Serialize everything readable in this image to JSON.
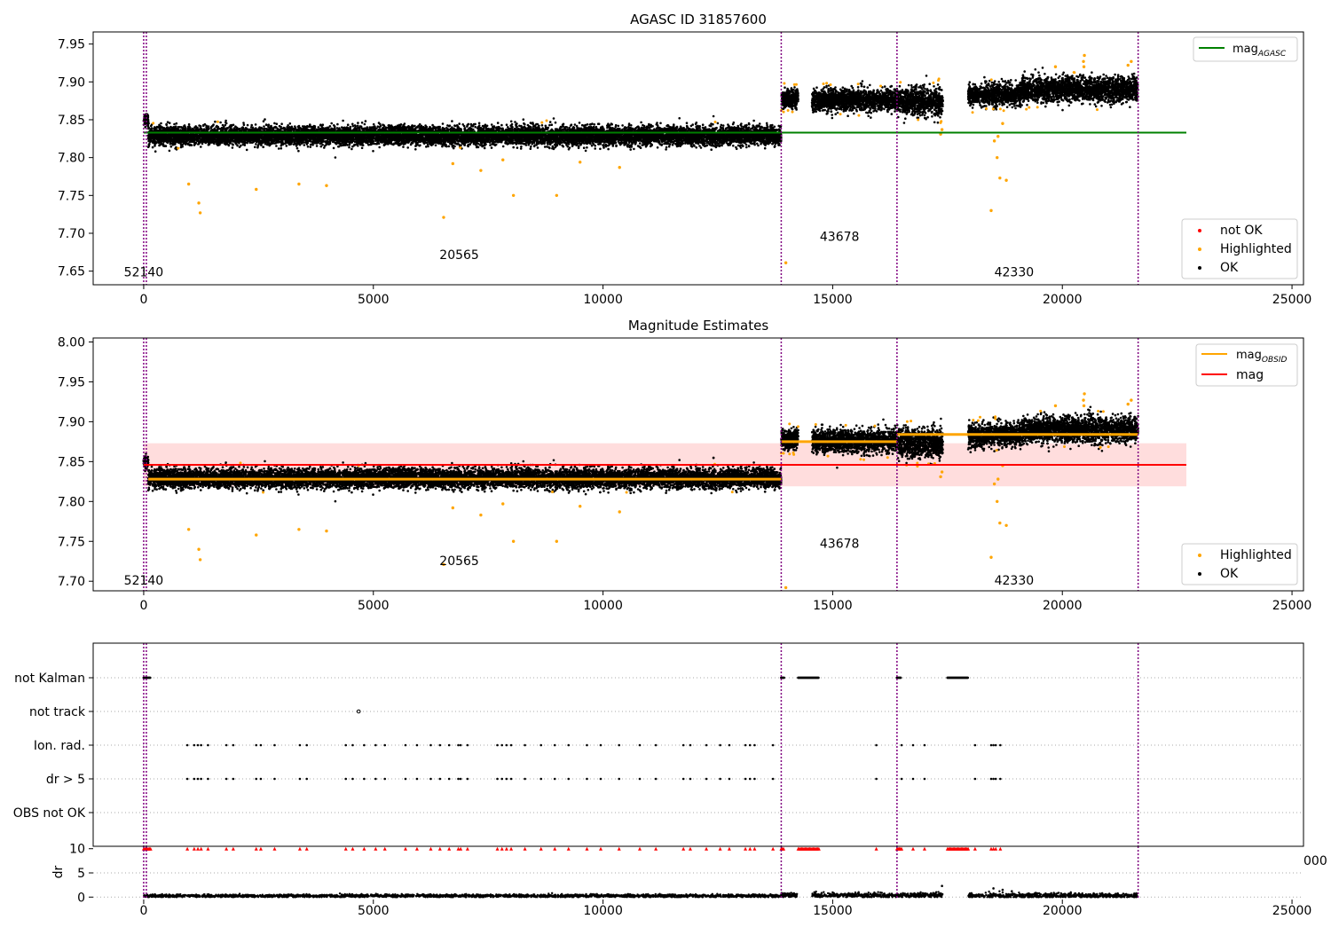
{
  "chart_data": [
    {
      "type": "scatter",
      "title": "AGASC ID 31857600",
      "xlim": [
        -1100,
        25250
      ],
      "ylim": [
        7.632,
        7.966
      ],
      "x_ticks": [
        0,
        5000,
        10000,
        15000,
        20000,
        25000
      ],
      "y_ticks": [
        7.65,
        7.7,
        7.75,
        7.8,
        7.85,
        7.9,
        7.95
      ],
      "observation_boundaries": [
        0,
        13880,
        16400,
        21650
      ],
      "obsid_labels": [
        {
          "text": "52140",
          "x": 0,
          "y": 7.643
        },
        {
          "text": "20565",
          "x": 6870,
          "y": 7.666
        },
        {
          "text": "43678",
          "x": 15150,
          "y": 7.69
        },
        {
          "text": "42330",
          "x": 18950,
          "y": 7.643
        }
      ],
      "reference_lines": [
        {
          "name": "mag_AGASC",
          "y": 7.833,
          "x_range": [
            0,
            22700
          ],
          "color": "#008000"
        }
      ],
      "segments": [
        {
          "x_range": [
            0,
            100
          ],
          "center": 7.85,
          "spread": 0.004
        },
        {
          "x_range": [
            100,
            13880
          ],
          "center": 7.829,
          "spread": 0.006
        },
        {
          "x_range": [
            13880,
            14250
          ],
          "center": 7.878,
          "spread": 0.006
        },
        {
          "x_range": [
            14550,
            16400
          ],
          "center": 7.876,
          "spread": 0.007
        },
        {
          "x_range": [
            16400,
            17400
          ],
          "center": 7.874,
          "spread": 0.009
        },
        {
          "x_range": [
            17950,
            19100
          ],
          "center": 7.883,
          "spread": 0.007
        },
        {
          "x_range": [
            19100,
            21650
          ],
          "center": 7.89,
          "spread": 0.008
        }
      ],
      "highlighted_points": [
        [
          980,
          7.765
        ],
        [
          1200,
          7.74
        ],
        [
          1230,
          7.727
        ],
        [
          2450,
          7.758
        ],
        [
          3380,
          7.765
        ],
        [
          3980,
          7.763
        ],
        [
          6530,
          7.721
        ],
        [
          6730,
          7.792
        ],
        [
          7340,
          7.783
        ],
        [
          7820,
          7.797
        ],
        [
          8050,
          7.75
        ],
        [
          8990,
          7.75
        ],
        [
          9500,
          7.794
        ],
        [
          10360,
          7.787
        ],
        [
          13980,
          7.661
        ],
        [
          17350,
          7.831
        ],
        [
          17380,
          7.837
        ],
        [
          18450,
          7.73
        ],
        [
          18520,
          7.822
        ],
        [
          18580,
          7.8
        ],
        [
          18600,
          7.828
        ],
        [
          18640,
          7.773
        ],
        [
          18780,
          7.77
        ],
        [
          18700,
          7.845
        ],
        [
          20480,
          7.935
        ],
        [
          20460,
          7.927
        ],
        [
          20470,
          7.92
        ],
        [
          21500,
          7.927
        ],
        [
          21430,
          7.922
        ],
        [
          19850,
          7.92
        ]
      ],
      "legend": {
        "position": "top-right",
        "items": [
          {
            "label": "mag",
            "subscript": "AGASC",
            "color": "#008000"
          }
        ]
      },
      "legend2": {
        "position": "lower-right",
        "items": [
          {
            "label": "not OK",
            "color": "#ff0000"
          },
          {
            "label": "Highlighted",
            "color": "#ffa500"
          },
          {
            "label": "OK",
            "color": "#000000"
          }
        ]
      }
    },
    {
      "type": "scatter",
      "title": "Magnitude Estimates",
      "xlim": [
        -1100,
        25250
      ],
      "ylim": [
        7.688,
        8.005
      ],
      "x_ticks": [
        0,
        5000,
        10000,
        15000,
        20000,
        25000
      ],
      "y_ticks": [
        7.7,
        7.75,
        7.8,
        7.85,
        7.9,
        7.95,
        8.0
      ],
      "observation_boundaries": [
        0,
        13880,
        16400,
        21650
      ],
      "obsid_labels": [
        {
          "text": "52140",
          "x": 0,
          "y": 7.696
        },
        {
          "text": "20565",
          "x": 6870,
          "y": 7.72
        },
        {
          "text": "43678",
          "x": 15150,
          "y": 7.742
        },
        {
          "text": "42330",
          "x": 18950,
          "y": 7.696
        }
      ],
      "band": {
        "y_range": [
          7.819,
          7.873
        ],
        "x_range": [
          0,
          22700
        ],
        "color": "#ffdddd"
      },
      "reference_lines": [
        {
          "name": "mag",
          "y": 7.846,
          "x_range": [
            0,
            22700
          ],
          "color": "#ff0000"
        }
      ],
      "obsid_lines": [
        {
          "x_range": [
            100,
            13880
          ],
          "y": 7.828
        },
        {
          "x_range": [
            13880,
            16400
          ],
          "y": 7.875
        },
        {
          "x_range": [
            16400,
            17950
          ],
          "y": 7.884
        },
        {
          "x_range": [
            17950,
            21650
          ],
          "y": 7.884
        }
      ],
      "segments": [
        {
          "x_range": [
            0,
            100
          ],
          "center": 7.85,
          "spread": 0.004
        },
        {
          "x_range": [
            100,
            13880
          ],
          "center": 7.829,
          "spread": 0.006
        },
        {
          "x_range": [
            13880,
            14250
          ],
          "center": 7.878,
          "spread": 0.006
        },
        {
          "x_range": [
            14550,
            16400
          ],
          "center": 7.876,
          "spread": 0.007
        },
        {
          "x_range": [
            16400,
            17400
          ],
          "center": 7.874,
          "spread": 0.009
        },
        {
          "x_range": [
            17950,
            19100
          ],
          "center": 7.883,
          "spread": 0.007
        },
        {
          "x_range": [
            19100,
            21650
          ],
          "center": 7.89,
          "spread": 0.008
        }
      ],
      "highlighted_points": [
        [
          980,
          7.765
        ],
        [
          1200,
          7.74
        ],
        [
          1230,
          7.727
        ],
        [
          2450,
          7.758
        ],
        [
          3380,
          7.765
        ],
        [
          3980,
          7.763
        ],
        [
          6530,
          7.721
        ],
        [
          6730,
          7.792
        ],
        [
          7340,
          7.783
        ],
        [
          7820,
          7.797
        ],
        [
          8050,
          7.75
        ],
        [
          8990,
          7.75
        ],
        [
          9500,
          7.794
        ],
        [
          10360,
          7.787
        ],
        [
          13980,
          7.692
        ],
        [
          17350,
          7.831
        ],
        [
          17380,
          7.837
        ],
        [
          18450,
          7.73
        ],
        [
          18520,
          7.822
        ],
        [
          18580,
          7.8
        ],
        [
          18600,
          7.828
        ],
        [
          18640,
          7.773
        ],
        [
          18780,
          7.77
        ],
        [
          18700,
          7.845
        ],
        [
          20480,
          7.935
        ],
        [
          20460,
          7.927
        ],
        [
          20470,
          7.92
        ],
        [
          21500,
          7.927
        ],
        [
          21430,
          7.922
        ],
        [
          19850,
          7.92
        ]
      ],
      "legend": {
        "position": "top-right",
        "items": [
          {
            "label": "mag",
            "subscript": "OBSID",
            "color": "#ffa500"
          },
          {
            "label": "mag",
            "subscript": "",
            "color": "#ff0000"
          }
        ]
      },
      "legend2": {
        "position": "lower-right",
        "items": [
          {
            "label": "Highlighted",
            "color": "#ffa500"
          },
          {
            "label": "OK",
            "color": "#000000"
          }
        ]
      }
    },
    {
      "type": "scatter",
      "title": "",
      "xlim": [
        -1100,
        25250
      ],
      "categories": [
        "not Kalman",
        "not track",
        "Ion. rad.",
        "dr > 5",
        "OBS not OK"
      ],
      "observation_boundaries": [
        0,
        13880,
        16400,
        21650
      ],
      "flag_events": {
        "not Kalman": [
          [
            0,
            150
          ],
          [
            13880,
            13950
          ],
          [
            14250,
            14700
          ],
          [
            16400,
            16480
          ],
          [
            17500,
            17950
          ]
        ],
        "not track": [
          [
            4680,
            4700
          ]
        ],
        "Ion. rad.": [
          950,
          1100,
          1180,
          1250,
          1400,
          1800,
          1950,
          2450,
          2550,
          2850,
          3400,
          3550,
          4400,
          4550,
          4800,
          5050,
          5250,
          5700,
          5950,
          6250,
          6450,
          6650,
          6850,
          6900,
          7050,
          7700,
          7800,
          7900,
          8000,
          8300,
          8650,
          8950,
          9250,
          9650,
          9950,
          10350,
          10800,
          11150,
          11750,
          11900,
          12250,
          12550,
          12750,
          13100,
          13200,
          13300,
          13700,
          15950,
          16500,
          16750,
          17000,
          18100,
          18450,
          18500,
          18550,
          18650
        ],
        "dr > 5": [
          950,
          1100,
          1180,
          1250,
          1400,
          1800,
          1950,
          2450,
          2550,
          2850,
          3400,
          3550,
          4400,
          4550,
          4800,
          5050,
          5250,
          5700,
          5950,
          6250,
          6450,
          6650,
          6850,
          6900,
          7050,
          7700,
          7800,
          7900,
          8000,
          8300,
          8650,
          8950,
          9250,
          9650,
          9950,
          10350,
          10800,
          11150,
          11750,
          11900,
          12250,
          12550,
          12750,
          13100,
          13200,
          13300,
          13700,
          15950,
          16500,
          16750,
          17000,
          18100,
          18450,
          18500,
          18550,
          18650
        ]
      }
    },
    {
      "type": "scatter",
      "title": "",
      "ylabel": "dr",
      "xlim": [
        -1100,
        25250
      ],
      "ylim": [
        -0.5,
        10.5
      ],
      "x_ticks": [
        0,
        5000,
        10000,
        15000,
        20000,
        25000
      ],
      "y_ticks": [
        0,
        5,
        10
      ],
      "clipped_text": "000",
      "observation_boundaries": [
        0,
        13880,
        16400,
        21650
      ],
      "segments": [
        {
          "x_range": [
            0,
            13880
          ],
          "center": 0.25,
          "spread": 0.15
        },
        {
          "x_range": [
            13880,
            14250
          ],
          "center": 0.4,
          "spread": 0.25
        },
        {
          "x_range": [
            14550,
            17400
          ],
          "center": 0.4,
          "spread": 0.25
        },
        {
          "x_range": [
            17950,
            21650
          ],
          "center": 0.3,
          "spread": 0.25
        }
      ],
      "high_dr_points": [
        [
          17380,
          2.3
        ],
        [
          18500,
          1.8
        ],
        [
          18700,
          1.5
        ],
        [
          18900,
          1.2
        ]
      ],
      "clipped_value": 10
    }
  ]
}
